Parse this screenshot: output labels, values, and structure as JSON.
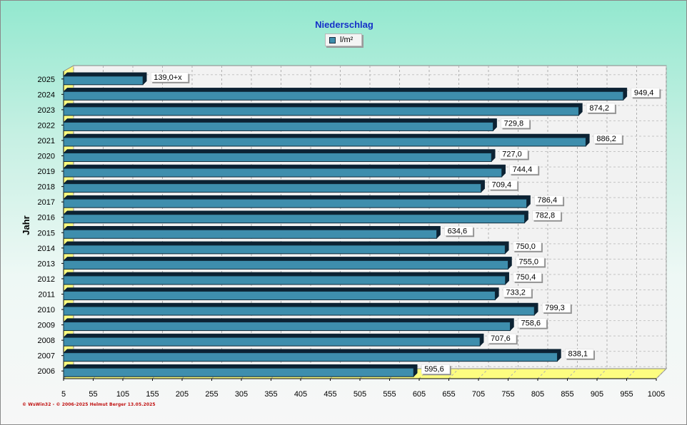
{
  "title": "Niederschlag",
  "legend_label": "l/m²",
  "copyright": "© WsWin32 - © 2006-2025 Helmut Berger 13.05.2025",
  "colors": {
    "bar": "#3e8ead",
    "bar_top": "#5aa6c3",
    "bar_side": "#0c2233",
    "floor": "#fdfd80",
    "wall": "#f2f2f2"
  },
  "chart_data": {
    "type": "bar",
    "orientation": "horizontal",
    "title": "Niederschlag",
    "ylabel": "Jahr",
    "xlabel": "",
    "xlim": [
      5,
      1005
    ],
    "xticks": [
      5,
      55,
      105,
      155,
      205,
      255,
      305,
      355,
      405,
      455,
      505,
      555,
      605,
      655,
      705,
      755,
      805,
      855,
      905,
      955,
      1005
    ],
    "categories": [
      "2025",
      "2024",
      "2023",
      "2022",
      "2021",
      "2020",
      "2019",
      "2018",
      "2017",
      "2016",
      "2015",
      "2014",
      "2013",
      "2012",
      "2011",
      "2010",
      "2009",
      "2008",
      "2007",
      "2006"
    ],
    "series": [
      {
        "name": "l/m²",
        "values": [
          139.0,
          949.4,
          874.2,
          729.8,
          886.2,
          727.0,
          744.4,
          709.4,
          786.4,
          782.8,
          634.6,
          750.0,
          755.0,
          750.4,
          733.2,
          799.3,
          758.6,
          707.6,
          838.1,
          595.6
        ],
        "labels": [
          "139,0+x",
          "949,4",
          "874,2",
          "729,8",
          "886,2",
          "727,0",
          "744,4",
          "709,4",
          "786,4",
          "782,8",
          "634,6",
          "750,0",
          "755,0",
          "750,4",
          "733,2",
          "799,3",
          "758,6",
          "707,6",
          "838,1",
          "595,6"
        ]
      }
    ],
    "grid": true,
    "legend_position": "top-center"
  }
}
